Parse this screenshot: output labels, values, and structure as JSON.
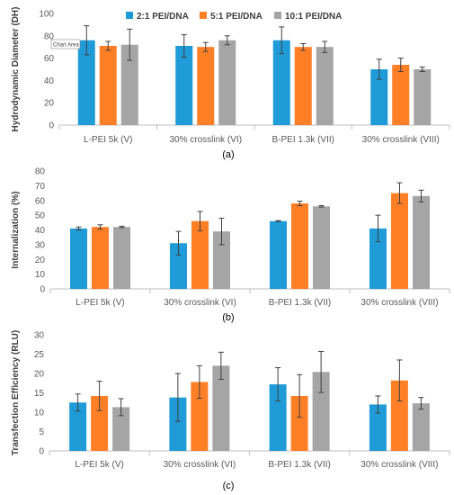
{
  "figure": {
    "captions": [
      "(a)",
      "(b)",
      "(c)"
    ]
  },
  "chart_data": [
    {
      "type": "bar",
      "panel": "(a)",
      "ylabel": "Hydrodynamic Diameter (DH)",
      "xlabel": "",
      "ylim": [
        0,
        100
      ],
      "yticks": [
        0,
        20,
        40,
        60,
        80,
        100
      ],
      "grid": false,
      "legend": "top",
      "tooltip": "Chart Area",
      "categories": [
        "L-PEI 5k (V)",
        "30% crosslink (VI)",
        "B-PEI 1.3k (VII)",
        "30% crosslink (VIII)"
      ],
      "series": [
        {
          "name": "2:1 PEI/DNA",
          "color": "#1f9bd7",
          "values": [
            76,
            71,
            76,
            50
          ],
          "errors": [
            13,
            10,
            12,
            9
          ]
        },
        {
          "name": "5:1 PEI/DNA",
          "color": "#ff7f27",
          "values": [
            71,
            70,
            70,
            54
          ],
          "errors": [
            4,
            4,
            3,
            6
          ]
        },
        {
          "name": "10:1 PEI/DNA",
          "color": "#a5a5a5",
          "values": [
            72,
            76,
            70,
            50
          ],
          "errors": [
            14,
            4,
            5,
            2
          ]
        }
      ]
    },
    {
      "type": "bar",
      "panel": "(b)",
      "ylabel": "Internalization (%)",
      "xlabel": "",
      "ylim": [
        0,
        80
      ],
      "yticks": [
        0,
        10,
        20,
        30,
        40,
        50,
        60,
        70,
        80
      ],
      "grid": false,
      "legend": "none",
      "categories": [
        "L-PEI 5k (V)",
        "30% crosslink (VI)",
        "B-PEI 1.3k (VII)",
        "30% crosslink (VIII)"
      ],
      "series": [
        {
          "name": "2:1 PEI/DNA",
          "color": "#1f9bd7",
          "values": [
            41,
            31,
            46,
            41
          ],
          "errors": [
            1,
            8,
            0.3,
            9
          ]
        },
        {
          "name": "5:1 PEI/DNA",
          "color": "#ff7f27",
          "values": [
            42,
            46,
            58,
            65
          ],
          "errors": [
            1.5,
            6.5,
            1.5,
            7
          ]
        },
        {
          "name": "10:1 PEI/DNA",
          "color": "#a5a5a5",
          "values": [
            42,
            39,
            56,
            63
          ],
          "errors": [
            0.5,
            9,
            0.5,
            4
          ]
        }
      ]
    },
    {
      "type": "bar",
      "panel": "(c)",
      "ylabel": "Transfection Efficiency (RLU)",
      "xlabel": "",
      "ylim": [
        0,
        30
      ],
      "yticks": [
        0,
        5,
        10,
        15,
        20,
        25,
        30
      ],
      "grid": false,
      "legend": "none",
      "categories": [
        "L-PEI 5k (V)",
        "30% crosslink (VI)",
        "B-PEI 1.3k (VII)",
        "30% crosslink (VIII)"
      ],
      "series": [
        {
          "name": "2:1 PEI/DNA",
          "color": "#1f9bd7",
          "values": [
            12.5,
            13.8,
            17.2,
            12.0
          ],
          "errors": [
            2.2,
            6.2,
            4.3,
            2.2
          ]
        },
        {
          "name": "5:1 PEI/DNA",
          "color": "#ff7f27",
          "values": [
            14.2,
            17.8,
            14.2,
            18.2
          ],
          "errors": [
            3.8,
            4.2,
            5.5,
            5.3
          ]
        },
        {
          "name": "10:1 PEI/DNA",
          "color": "#a5a5a5",
          "values": [
            11.3,
            22.0,
            20.4,
            12.3
          ],
          "errors": [
            2.2,
            3.5,
            5.3,
            1.5
          ]
        }
      ]
    }
  ]
}
